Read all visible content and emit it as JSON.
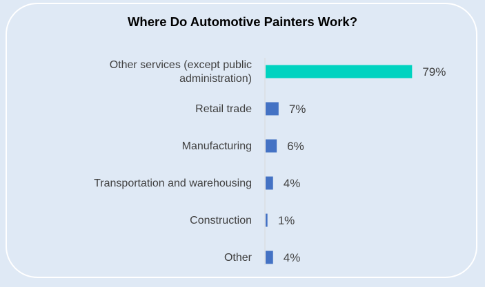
{
  "chart_data": {
    "type": "bar",
    "orientation": "horizontal",
    "title": "Where Do Automotive Painters Work?",
    "categories": [
      "Other services (except public administration)",
      "Retail trade",
      "Manufacturing",
      "Transportation and warehousing",
      "Construction",
      "Other"
    ],
    "category_lines": [
      [
        "Other services (except public",
        "administration)"
      ],
      [
        "Retail trade"
      ],
      [
        "Manufacturing"
      ],
      [
        "Transportation and warehousing"
      ],
      [
        "Construction"
      ],
      [
        "Other"
      ]
    ],
    "values": [
      79,
      7,
      6,
      4,
      1,
      4
    ],
    "value_labels": [
      "79%",
      "7%",
      "6%",
      "4%",
      "1%",
      "4%"
    ],
    "unit": "%",
    "xlim": [
      0,
      80
    ],
    "grid": false,
    "legend": "none",
    "colors": {
      "highlight": "#00d3c0",
      "bar": "#4472c4",
      "axis": "#d9d9d9",
      "text": "#404040"
    },
    "highlight_index": 0
  }
}
